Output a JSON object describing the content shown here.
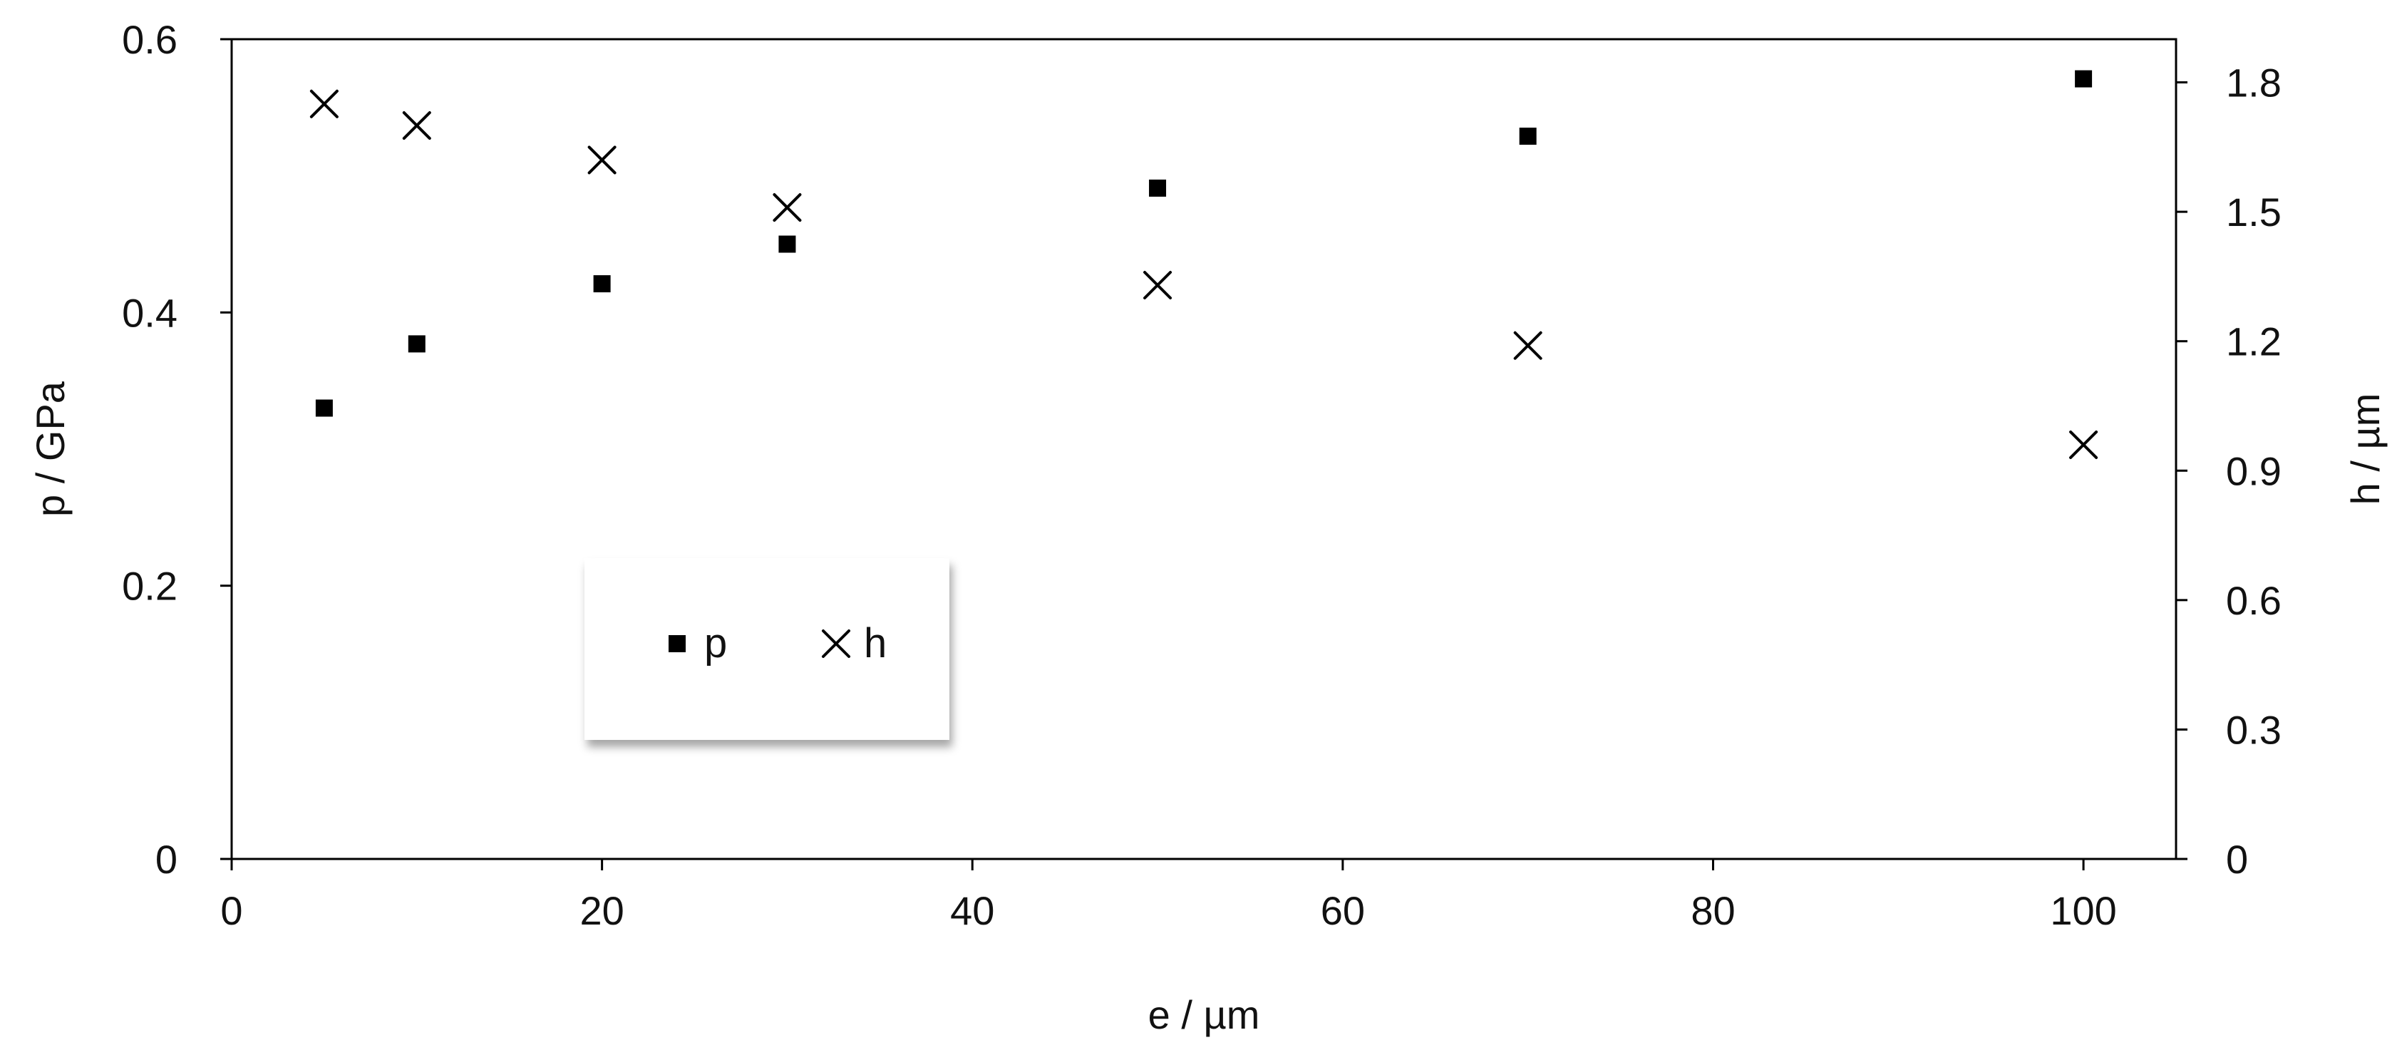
{
  "chart_data": {
    "type": "scatter",
    "title": "",
    "xlabel": "e / µm",
    "ylabel": "p / GPa",
    "y2label": "h / µm",
    "xlim": [
      0,
      105
    ],
    "ylim": [
      0,
      0.6
    ],
    "y2lim": [
      0,
      1.9
    ],
    "x_ticks": [
      "0",
      "20",
      "40",
      "60",
      "80",
      "100"
    ],
    "y_ticks": [
      "0",
      "0.2",
      "0.4",
      "0.6"
    ],
    "y2_ticks": [
      "0",
      "0.3",
      "0.6",
      "0.9",
      "1.2",
      "1.5",
      "1.8"
    ],
    "grid": false,
    "legend_position": "center-left",
    "series": [
      {
        "name": "p",
        "axis": "left",
        "marker": "square",
        "color": "#000000",
        "x": [
          5,
          10,
          20,
          30,
          50,
          70,
          100
        ],
        "y": [
          0.33,
          0.377,
          0.421,
          0.45,
          0.491,
          0.529,
          0.571
        ]
      },
      {
        "name": "h",
        "axis": "right",
        "marker": "x",
        "color": "#000000",
        "x": [
          5,
          10,
          20,
          30,
          50,
          70,
          100
        ],
        "y": [
          1.75,
          1.7,
          1.62,
          1.51,
          1.33,
          1.19,
          0.96
        ]
      }
    ]
  }
}
